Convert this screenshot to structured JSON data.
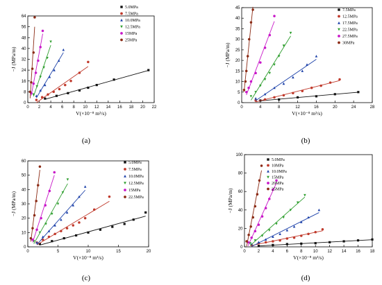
{
  "figure": {
    "chart_data": [
      {
        "panel": "(a)",
        "type": "scatter",
        "xlabel": "V(×10⁻⁸ m³/s)",
        "ylabel": "−J (MPa/m)",
        "xlim": [
          0,
          22
        ],
        "ylim": [
          0,
          64
        ],
        "xticks": [
          0,
          2,
          4,
          6,
          8,
          10,
          12,
          14,
          16,
          18,
          20,
          22
        ],
        "yticks": [
          0,
          8,
          16,
          24,
          32,
          40,
          48,
          56,
          64
        ],
        "legend_position": "top-right",
        "series": [
          {
            "name": "5.0MPa",
            "marker": "square",
            "color": "#111111",
            "x": [
              3,
              5,
              7,
              9,
              10.5,
              12,
              15,
              21
            ],
            "y": [
              3,
              5,
              7,
              9,
              11,
              13,
              17,
              24
            ]
          },
          {
            "name": "7.5MPa",
            "marker": "circle",
            "color": "#c0392b",
            "x": [
              1.5,
              2.5,
              3.5,
              4.5,
              5.5,
              6.5,
              7.5,
              9,
              10.5
            ],
            "y": [
              2,
              4,
              6,
              8,
              10,
              13,
              16,
              22,
              30
            ]
          },
          {
            "name": "10.0MPa",
            "marker": "triangle",
            "color": "#1a3fa8",
            "x": [
              1.5,
              2.2,
              3,
              3.8,
              4.6,
              5.4,
              6.2
            ],
            "y": [
              5,
              9,
              13,
              19,
              24,
              31,
              39
            ]
          },
          {
            "name": "12.5MPa",
            "marker": "triangle-down",
            "color": "#2e9e2e",
            "x": [
              1,
              1.6,
              2.2,
              2.8,
              3.4,
              4
            ],
            "y": [
              6,
              12,
              19,
              26,
              33,
              45
            ]
          },
          {
            "name": "15MPa",
            "marker": "circle",
            "color": "#c817c8",
            "x": [
              0.6,
              1,
              1.4,
              1.8,
              2.2,
              2.6
            ],
            "y": [
              7,
              14,
              22,
              31,
              41,
              53
            ]
          },
          {
            "name": "25MPa",
            "marker": "circle",
            "color": "#8b2a14",
            "x": [
              0.4,
              0.6,
              0.8,
              1,
              1.2
            ],
            "y": [
              8,
              15,
              25,
              37,
              63
            ]
          }
        ]
      },
      {
        "panel": "(b)",
        "type": "scatter",
        "xlabel": "V(×10⁻⁸ m³/s)",
        "ylabel": "−J (MPa/m)",
        "xlim": [
          0,
          28
        ],
        "ylim": [
          0,
          45
        ],
        "xticks": [
          0,
          4,
          8,
          12,
          16,
          20,
          24,
          28
        ],
        "yticks": [
          0,
          5,
          10,
          15,
          20,
          25,
          30,
          35,
          40,
          45
        ],
        "legend_position": "top-right",
        "series": [
          {
            "name": "7.5MPa",
            "marker": "square",
            "color": "#111111",
            "x": [
              4,
              8,
              12,
              16,
              20,
              25
            ],
            "y": [
              1,
              1.5,
              2.5,
              3,
              4,
              5
            ]
          },
          {
            "name": "12.5MPa",
            "marker": "circle",
            "color": "#c0392b",
            "x": [
              3,
              5,
              7,
              9,
              11,
              13,
              15,
              17,
              19,
              21
            ],
            "y": [
              1,
              1.5,
              2.5,
              3.5,
              4.5,
              5.5,
              7,
              8,
              9.5,
              11
            ]
          },
          {
            "name": "17.5MPa",
            "marker": "triangle",
            "color": "#1a3fa8",
            "x": [
              3,
              5,
              7,
              9,
              11,
              13,
              14,
              16
            ],
            "y": [
              2,
              4,
              7,
              9,
              12,
              15,
              18,
              22
            ]
          },
          {
            "name": "22.5MPa",
            "marker": "triangle-down",
            "color": "#2e9e2e",
            "x": [
              2,
              3,
              4,
              5,
              6,
              7,
              8,
              9,
              10.5
            ],
            "y": [
              3,
              5,
              8,
              11,
              14,
              18,
              22,
              27,
              33
            ]
          },
          {
            "name": "27.5MPa",
            "marker": "circle",
            "color": "#c817c8",
            "x": [
              1,
              1.5,
              2,
              3,
              4,
              5,
              6,
              7
            ],
            "y": [
              5,
              7,
              10,
              14,
              19,
              26,
              32,
              41
            ]
          },
          {
            "name": "30MPa",
            "marker": "circle",
            "color": "#8b2a14",
            "x": [
              0.5,
              0.8,
              1,
              1.3,
              1.6,
              2,
              2.4
            ],
            "y": [
              6,
              10,
              15,
              22,
              30,
              38,
              44
            ]
          }
        ]
      },
      {
        "panel": "(c)",
        "type": "scatter",
        "xlabel": "V(×10⁻⁸ m³/s)",
        "ylabel": "−J (MPa/m)",
        "xlim": [
          0,
          20
        ],
        "ylim": [
          0,
          60
        ],
        "xticks": [
          0,
          5,
          10,
          15,
          20
        ],
        "yticks": [
          0,
          10,
          20,
          30,
          40,
          50,
          60
        ],
        "legend_position": "top-right",
        "series": [
          {
            "name": "5.0MPa",
            "marker": "square",
            "color": "#111111",
            "x": [
              2,
              4,
              6,
              8,
              10,
              12,
              14,
              16,
              17.5,
              19.5
            ],
            "y": [
              2,
              4,
              6,
              8,
              10,
              12,
              14,
              16,
              19,
              24
            ]
          },
          {
            "name": "7.5MPa",
            "marker": "circle",
            "color": "#c0392b",
            "x": [
              1.5,
              2.5,
              3.5,
              4.5,
              5.5,
              6.5,
              7.5,
              8.5,
              9.5,
              11,
              13.5
            ],
            "y": [
              3,
              5,
              7,
              9,
              11,
              13,
              15,
              17,
              20,
              26,
              35
            ]
          },
          {
            "name": "10.0MPa",
            "marker": "triangle",
            "color": "#1a3fa8",
            "x": [
              1.5,
              2.5,
              3.5,
              4.5,
              5.5,
              6.5,
              7.5,
              8.5,
              9.5
            ],
            "y": [
              3,
              7,
              11,
              15,
              19,
              24,
              29,
              35,
              42
            ]
          },
          {
            "name": "12.5MPa",
            "marker": "triangle-down",
            "color": "#2e9e2e",
            "x": [
              1,
              2,
              3,
              4,
              5,
              5.8,
              6.6
            ],
            "y": [
              4,
              10,
              16,
              23,
              30,
              38,
              47
            ]
          },
          {
            "name": "15MPa",
            "marker": "circle",
            "color": "#c817c8",
            "x": [
              0.8,
              1.5,
              2.2,
              2.9,
              3.6,
              4.4
            ],
            "y": [
              5,
              12,
              20,
              29,
              39,
              52
            ]
          },
          {
            "name": "22.5MPa",
            "marker": "circle",
            "color": "#8b2a14",
            "x": [
              0.5,
              0.8,
              1.1,
              1.4,
              1.7,
              2
            ],
            "y": [
              6,
              13,
              22,
              32,
              43,
              56
            ]
          }
        ]
      },
      {
        "panel": "(d)",
        "type": "scatter",
        "xlabel": "V(×10⁻⁸ m³/s)",
        "ylabel": "−J (MPa/m)",
        "xlim": [
          0,
          18
        ],
        "ylim": [
          0,
          100
        ],
        "xticks": [
          0,
          2,
          4,
          6,
          8,
          10,
          12,
          14,
          16,
          18
        ],
        "yticks": [
          0,
          20,
          40,
          60,
          80,
          100
        ],
        "legend_position": "top-left",
        "series": [
          {
            "name": "5.0MPa",
            "marker": "square",
            "color": "#111111",
            "x": [
              2,
              4,
              6,
              8,
              10,
              12,
              14,
              16,
              18
            ],
            "y": [
              1,
              2,
              3,
              3.5,
              4,
              5,
              6,
              7,
              8
            ]
          },
          {
            "name": "10MPa",
            "marker": "circle",
            "color": "#c0392b",
            "x": [
              1,
              2,
              3,
              4,
              5,
              6,
              7,
              8,
              9,
              10,
              11
            ],
            "y": [
              2,
              4,
              5,
              6,
              7,
              9,
              10,
              12,
              14,
              16,
              19
            ]
          },
          {
            "name": "10.0MPa",
            "marker": "triangle",
            "color": "#1a3fa8",
            "x": [
              1,
              2,
              3,
              4,
              5,
              6,
              7,
              8,
              9,
              10.5
            ],
            "y": [
              3,
              5,
              8,
              11,
              14,
              18,
              22,
              27,
              32,
              40
            ]
          },
          {
            "name": "15MPa",
            "marker": "triangle-down",
            "color": "#2e9e2e",
            "x": [
              0.8,
              1.5,
              2.5,
              3.5,
              4.5,
              5.5,
              6.5,
              7.5,
              8.5
            ],
            "y": [
              4,
              7,
              12,
              18,
              25,
              32,
              40,
              48,
              56
            ]
          },
          {
            "name": "20MPa",
            "marker": "circle",
            "color": "#c817c8",
            "x": [
              0.5,
              1,
              1.5,
              2,
              2.5,
              3,
              3.5,
              4,
              4.5
            ],
            "y": [
              5,
              10,
              17,
              24,
              33,
              42,
              52,
              62,
              72
            ]
          },
          {
            "name": "25MPa",
            "marker": "circle",
            "color": "#8b2a14",
            "x": [
              0.3,
              0.6,
              0.9,
              1.2,
              1.5,
              1.8,
              2.1,
              2.4
            ],
            "y": [
              6,
              13,
              22,
              32,
              44,
              57,
              72,
              88
            ]
          }
        ]
      }
    ]
  }
}
